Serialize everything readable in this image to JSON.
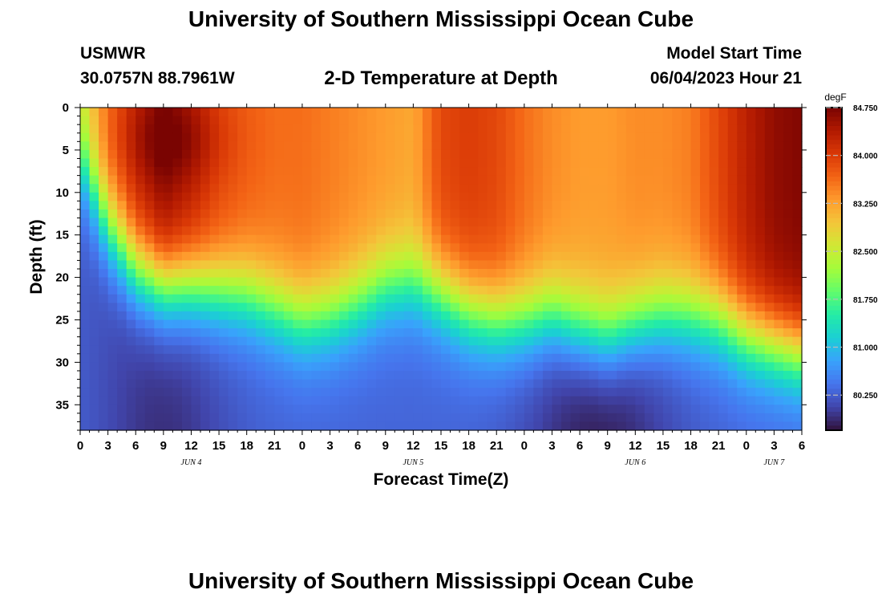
{
  "header": {
    "title": "University of Southern Mississippi Ocean Cube",
    "station": "USMWR",
    "coords": "30.0757N  88.7961W",
    "subtitle": "2-D Temperature at Depth",
    "model_start_label": "Model Start Time",
    "model_start_value": "06/04/2023 Hour 21"
  },
  "footer": {
    "title": "University of Southern Mississippi Ocean Cube"
  },
  "chart_data": {
    "type": "heatmap",
    "xlabel": "Forecast Time(Z)",
    "ylabel": "Depth (ft)",
    "x_tick_labels": [
      "0",
      "3",
      "6",
      "9",
      "12",
      "15",
      "18",
      "21",
      "0",
      "3",
      "6",
      "9",
      "12",
      "15",
      "18",
      "21",
      "0",
      "3",
      "6",
      "9",
      "12",
      "15",
      "18",
      "21",
      "0",
      "3",
      "6"
    ],
    "x_range_hours": [
      0,
      78
    ],
    "date_labels": [
      {
        "label": "JUN 4",
        "hour": 12
      },
      {
        "label": "JUN 5",
        "hour": 36
      },
      {
        "label": "JUN 6",
        "hour": 60
      },
      {
        "label": "JUN 7",
        "hour": 75
      }
    ],
    "y_ticks": [
      0,
      5,
      10,
      15,
      20,
      25,
      30,
      35
    ],
    "ylim": [
      0,
      38
    ],
    "y_inverted": true,
    "colorbar": {
      "unit": "degF",
      "tick_labels": [
        "84.750",
        "84.000",
        "83.250",
        "82.500",
        "81.750",
        "81.000",
        "80.250"
      ],
      "tick_values": [
        84.75,
        84.0,
        83.25,
        82.5,
        81.75,
        81.0,
        80.25
      ],
      "range": [
        79.7,
        84.75
      ],
      "colormap": [
        "#30123b",
        "#4145ab",
        "#4675ed",
        "#39a2fc",
        "#1bcfd4",
        "#24eca6",
        "#61fc6c",
        "#a4fc3b",
        "#d1e834",
        "#f3c63a",
        "#fe9b2d",
        "#f36315",
        "#d93806",
        "#b11901",
        "#7a0402"
      ]
    },
    "series": [
      {
        "name": "thermocline_depth_ft",
        "x": [
          0,
          3,
          6,
          9,
          12,
          15,
          18,
          21,
          24,
          27,
          30,
          33,
          36,
          39,
          42,
          45,
          48,
          51,
          54,
          57,
          60,
          63,
          66,
          69,
          72,
          75,
          78
        ],
        "values": [
          6,
          14,
          19,
          21,
          21,
          21.5,
          22,
          23.5,
          25,
          24.5,
          23,
          21,
          20.5,
          22,
          24,
          25,
          25,
          24.5,
          26,
          27,
          25.5,
          24.5,
          24.5,
          25,
          27,
          28,
          29
        ]
      },
      {
        "name": "surface_temp_degF",
        "x": [
          0,
          3,
          6,
          9,
          12,
          15,
          18,
          21,
          24,
          27,
          30,
          33,
          36,
          39,
          42,
          45,
          48,
          51,
          54,
          57,
          60,
          63,
          66,
          69,
          72,
          75,
          78
        ],
        "values": [
          82.6,
          83.6,
          84.2,
          84.6,
          84.3,
          83.9,
          83.7,
          83.6,
          83.6,
          83.5,
          83.4,
          83.3,
          83.2,
          83.9,
          84.0,
          83.9,
          83.6,
          83.4,
          83.3,
          83.3,
          83.4,
          83.4,
          83.5,
          83.9,
          84.3,
          84.6,
          84.7
        ]
      }
    ]
  }
}
